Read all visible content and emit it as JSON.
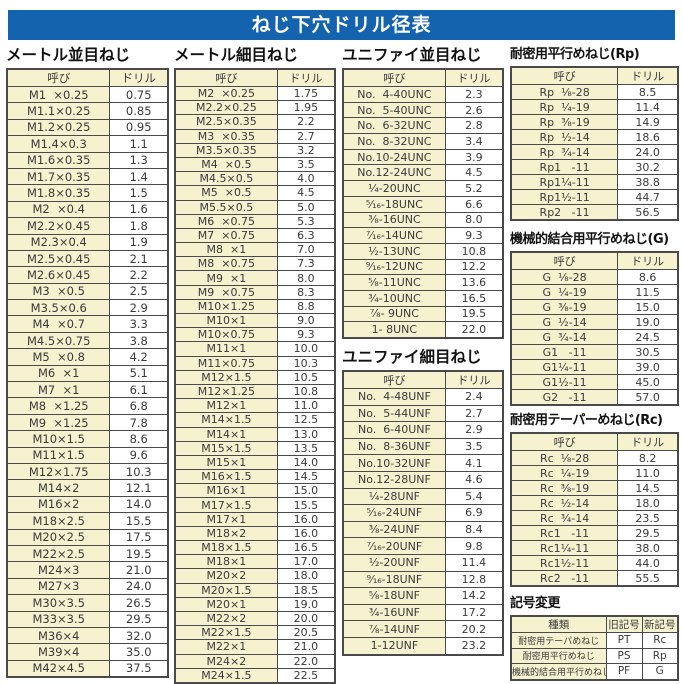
{
  "title": "ねじ下穴ドリル径表",
  "colors": {
    "title_bar": "#1463ae",
    "title_text": "#ffffff",
    "cell_yellow": "#f6f1cf",
    "border": "#4a4a4a"
  },
  "col_headers": {
    "name": "呼び",
    "drill": "ドリル"
  },
  "sections": {
    "metric_coarse": {
      "title": "メートル並目ねじ",
      "rows": [
        [
          "M1  ×0.25",
          "0.75"
        ],
        [
          "M1.1×0.25",
          "0.85"
        ],
        [
          "M1.2×0.25",
          "0.95"
        ],
        [
          "M1.4×0.3",
          "1.1"
        ],
        [
          "M1.6×0.35",
          "1.3"
        ],
        [
          "M1.7×0.35",
          "1.4"
        ],
        [
          "M1.8×0.35",
          "1.5"
        ],
        [
          "M2  ×0.4",
          "1.6"
        ],
        [
          "M2.2×0.45",
          "1.8"
        ],
        [
          "M2.3×0.4",
          "1.9"
        ],
        [
          "M2.5×0.45",
          "2.1"
        ],
        [
          "M2.6×0.45",
          "2.2"
        ],
        [
          "M3  ×0.5",
          "2.5"
        ],
        [
          "M3.5×0.6",
          "2.9"
        ],
        [
          "M4  ×0.7",
          "3.3"
        ],
        [
          "M4.5×0.75",
          "3.8"
        ],
        [
          "M5  ×0.8",
          "4.2"
        ],
        [
          "M6  ×1",
          "5.1"
        ],
        [
          "M7  ×1",
          "6.1"
        ],
        [
          "M8  ×1.25",
          "6.8"
        ],
        [
          "M9  ×1.25",
          "7.8"
        ],
        [
          "M10×1.5",
          "8.6"
        ],
        [
          "M11×1.5",
          "9.6"
        ],
        [
          "M12×1.75",
          "10.3"
        ],
        [
          "M14×2",
          "12.1"
        ],
        [
          "M16×2",
          "14.0"
        ],
        [
          "M18×2.5",
          "15.5"
        ],
        [
          "M20×2.5",
          "17.5"
        ],
        [
          "M22×2.5",
          "19.5"
        ],
        [
          "M24×3",
          "21.0"
        ],
        [
          "M27×3",
          "24.0"
        ],
        [
          "M30×3.5",
          "26.5"
        ],
        [
          "M33×3.5",
          "29.5"
        ],
        [
          "M36×4",
          "32.0"
        ],
        [
          "M39×4",
          "35.0"
        ],
        [
          "M42×4.5",
          "37.5"
        ]
      ]
    },
    "metric_fine": {
      "title": "メートル細目ねじ",
      "rows": [
        [
          "M2  ×0.25",
          "1.75"
        ],
        [
          "M2.2×0.25",
          "1.95"
        ],
        [
          "M2.5×0.35",
          "2.2"
        ],
        [
          "M3  ×0.35",
          "2.7"
        ],
        [
          "M3.5×0.35",
          "3.2"
        ],
        [
          "M4  ×0.5",
          "3.5"
        ],
        [
          "M4.5×0.5",
          "4.0"
        ],
        [
          "M5  ×0.5",
          "4.5"
        ],
        [
          "M5.5×0.5",
          "5.0"
        ],
        [
          "M6  ×0.75",
          "5.3"
        ],
        [
          "M7  ×0.75",
          "6.3"
        ],
        [
          "M8  ×1",
          "7.0"
        ],
        [
          "M8  ×0.75",
          "7.3"
        ],
        [
          "M9  ×1",
          "8.0"
        ],
        [
          "M9  ×0.75",
          "8.3"
        ],
        [
          "M10×1.25",
          "8.8"
        ],
        [
          "M10×1",
          "9.0"
        ],
        [
          "M10×0.75",
          "9.3"
        ],
        [
          "M11×1",
          "10.0"
        ],
        [
          "M11×0.75",
          "10.3"
        ],
        [
          "M12×1.5",
          "10.5"
        ],
        [
          "M12×1.25",
          "10.8"
        ],
        [
          "M12×1",
          "11.0"
        ],
        [
          "M14×1.5",
          "12.5"
        ],
        [
          "M14×1",
          "13.0"
        ],
        [
          "M15×1.5",
          "13.5"
        ],
        [
          "M15×1",
          "14.0"
        ],
        [
          "M16×1.5",
          "14.5"
        ],
        [
          "M16×1",
          "15.0"
        ],
        [
          "M17×1.5",
          "15.5"
        ],
        [
          "M17×1",
          "16.0"
        ],
        [
          "M18×2",
          "16.0"
        ],
        [
          "M18×1.5",
          "16.5"
        ],
        [
          "M18×1",
          "17.0"
        ],
        [
          "M20×2",
          "18.0"
        ],
        [
          "M20×1.5",
          "18.5"
        ],
        [
          "M20×1",
          "19.0"
        ],
        [
          "M22×2",
          "20.0"
        ],
        [
          "M22×1.5",
          "20.5"
        ],
        [
          "M22×1",
          "21.0"
        ],
        [
          "M24×2",
          "22.0"
        ],
        [
          "M24×1.5",
          "22.5"
        ]
      ]
    },
    "unified_coarse": {
      "title": "ユニファイ並目ねじ",
      "rows": [
        [
          "No.  4-40UNC",
          "2.3"
        ],
        [
          "No.  5-40UNC",
          "2.6"
        ],
        [
          "No.  6-32UNC",
          "2.8"
        ],
        [
          "No.  8-32UNC",
          "3.4"
        ],
        [
          "No.10-24UNC",
          "3.9"
        ],
        [
          "No.12-24UNC",
          "4.5"
        ],
        [
          "¹⁄₄-20UNC",
          "5.2"
        ],
        [
          "⁵⁄₁₆-18UNC",
          "6.6"
        ],
        [
          "³⁄₈-16UNC",
          "8.0"
        ],
        [
          "⁷⁄₁₆-14UNC",
          "9.3"
        ],
        [
          "¹⁄₂-13UNC",
          "10.8"
        ],
        [
          "⁹⁄₁₆-12UNC",
          "12.2"
        ],
        [
          "⁵⁄₈-11UNC",
          "13.6"
        ],
        [
          "³⁄₄-10UNC",
          "16.5"
        ],
        [
          "⁷⁄₈- 9UNC",
          "19.5"
        ],
        [
          "1- 8UNC",
          "22.0"
        ]
      ]
    },
    "unified_fine": {
      "title": "ユニファイ細目ねじ",
      "rows": [
        [
          "No.  4-48UNF",
          "2.4"
        ],
        [
          "No.  5-44UNF",
          "2.7"
        ],
        [
          "No.  6-40UNF",
          "2.9"
        ],
        [
          "No.  8-36UNF",
          "3.5"
        ],
        [
          "No.10-32UNF",
          "4.1"
        ],
        [
          "No.12-28UNF",
          "4.6"
        ],
        [
          "¹⁄₄-28UNF",
          "5.4"
        ],
        [
          "⁵⁄₁₆-24UNF",
          "6.9"
        ],
        [
          "³⁄₈-24UNF",
          "8.4"
        ],
        [
          "⁷⁄₁₆-20UNF",
          "9.8"
        ],
        [
          "¹⁄₂-20UNF",
          "11.4"
        ],
        [
          "⁹⁄₁₆-18UNF",
          "12.8"
        ],
        [
          "⁵⁄₈-18UNF",
          "14.2"
        ],
        [
          "³⁄₄-16UNF",
          "17.2"
        ],
        [
          "⁷⁄₈-14UNF",
          "20.2"
        ],
        [
          "1-12UNF",
          "23.2"
        ]
      ]
    },
    "rp": {
      "title": "耐密用平行めねじ(Rp)",
      "rows": [
        [
          "Rp  ¹⁄₈-28",
          "8.5"
        ],
        [
          "Rp  ¹⁄₄-19",
          "11.4"
        ],
        [
          "Rp  ³⁄₈-19",
          "14.9"
        ],
        [
          "Rp  ¹⁄₂-14",
          "18.6"
        ],
        [
          "Rp  ³⁄₄-14",
          "24.0"
        ],
        [
          "Rp1   -11",
          "30.2"
        ],
        [
          "Rp1¹⁄₄-11",
          "38.8"
        ],
        [
          "Rp1¹⁄₂-11",
          "44.7"
        ],
        [
          "Rp2   -11",
          "56.5"
        ]
      ]
    },
    "g": {
      "title": "機械的結合用平行めねじ(G)",
      "rows": [
        [
          "G  ¹⁄₈-28",
          "8.6"
        ],
        [
          "G  ¹⁄₄-19",
          "11.5"
        ],
        [
          "G  ³⁄₈-19",
          "15.0"
        ],
        [
          "G  ¹⁄₂-14",
          "19.0"
        ],
        [
          "G  ³⁄₄-14",
          "24.5"
        ],
        [
          "G1   -11",
          "30.5"
        ],
        [
          "G1¹⁄₄-11",
          "39.0"
        ],
        [
          "G1¹⁄₂-11",
          "45.0"
        ],
        [
          "G2   -11",
          "57.0"
        ]
      ]
    },
    "rc": {
      "title": "耐密用テーパーめねじ(Rc)",
      "rows": [
        [
          "Rc  ¹⁄₈-28",
          "8.2"
        ],
        [
          "Rc  ¹⁄₄-19",
          "11.0"
        ],
        [
          "Rc  ³⁄₈-19",
          "14.5"
        ],
        [
          "Rc  ¹⁄₂-14",
          "18.0"
        ],
        [
          "Rc  ³⁄₄-14",
          "23.5"
        ],
        [
          "Rc1   -11",
          "29.5"
        ],
        [
          "Rc1¹⁄₄-11",
          "38.0"
        ],
        [
          "Rc1¹⁄₂-11",
          "44.0"
        ],
        [
          "Rc2   -11",
          "55.5"
        ]
      ]
    },
    "symbol_change": {
      "title": "記号変更",
      "headers": [
        "種類",
        "旧記号",
        "新記号"
      ],
      "rows": [
        [
          "耐密用テーパめねじ",
          "PT",
          "Rc"
        ],
        [
          "耐密用平行めねじ",
          "PS",
          "Rp"
        ],
        [
          "機械的結合用平行めねじ",
          "PF",
          "G"
        ]
      ]
    }
  }
}
